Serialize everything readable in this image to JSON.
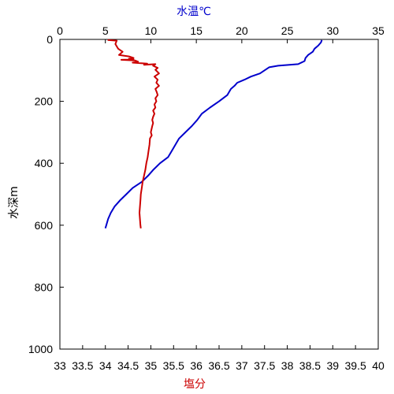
{
  "chart_data": {
    "type": "line",
    "title": "",
    "y_axis": {
      "label": "水深m",
      "range": [
        0,
        1000
      ],
      "ticks": [
        0,
        200,
        400,
        600,
        800,
        1000
      ],
      "inverted": true,
      "label_color": "#000000"
    },
    "x_axis_top": {
      "label": "水温℃",
      "range": [
        0,
        35
      ],
      "ticks": [
        0,
        5,
        10,
        15,
        20,
        25,
        30,
        35
      ],
      "label_color": "#0000cc"
    },
    "x_axis_bottom": {
      "label": "塩分",
      "range": [
        33,
        40
      ],
      "ticks": [
        33,
        33.5,
        34,
        34.5,
        35,
        35.5,
        36,
        36.5,
        37,
        37.5,
        38,
        38.5,
        39,
        39.5,
        40
      ],
      "tick_labels": [
        "33",
        "33.5",
        "34",
        "34.5",
        "35",
        "35.5",
        "36",
        "36.5",
        "37",
        "37.5",
        "38",
        "38.5",
        "39",
        "39.5",
        "40"
      ],
      "label_color": "#cc0000"
    },
    "grid": false,
    "series": [
      {
        "axis": "top",
        "color": "#0000cc",
        "points": [
          [
            28.8,
            2
          ],
          [
            28.7,
            10
          ],
          [
            28.4,
            20
          ],
          [
            28.0,
            30
          ],
          [
            27.8,
            40
          ],
          [
            27.3,
            50
          ],
          [
            27.0,
            60
          ],
          [
            26.9,
            70
          ],
          [
            26.2,
            80
          ],
          [
            24.0,
            85
          ],
          [
            23.0,
            90
          ],
          [
            22.5,
            100
          ],
          [
            22.0,
            110
          ],
          [
            21.0,
            120
          ],
          [
            20.3,
            130
          ],
          [
            19.5,
            140
          ],
          [
            19.2,
            150
          ],
          [
            18.8,
            160
          ],
          [
            18.4,
            180
          ],
          [
            17.5,
            200
          ],
          [
            16.5,
            220
          ],
          [
            15.6,
            240
          ],
          [
            15.1,
            260
          ],
          [
            14.5,
            280
          ],
          [
            13.8,
            300
          ],
          [
            13.1,
            320
          ],
          [
            12.7,
            340
          ],
          [
            12.3,
            360
          ],
          [
            11.9,
            380
          ],
          [
            11.0,
            400
          ],
          [
            10.3,
            420
          ],
          [
            9.7,
            440
          ],
          [
            9.0,
            460
          ],
          [
            8.0,
            480
          ],
          [
            7.3,
            500
          ],
          [
            6.6,
            520
          ],
          [
            6.0,
            540
          ],
          [
            5.6,
            560
          ],
          [
            5.3,
            580
          ],
          [
            5.1,
            600
          ],
          [
            5.0,
            610
          ]
        ]
      },
      {
        "axis": "bottom",
        "color": "#cc0000",
        "points": [
          [
            34.05,
            2
          ],
          [
            34.25,
            4
          ],
          [
            34.22,
            15
          ],
          [
            34.28,
            30
          ],
          [
            34.38,
            40
          ],
          [
            34.3,
            50
          ],
          [
            34.52,
            55
          ],
          [
            34.62,
            60
          ],
          [
            34.52,
            62
          ],
          [
            34.62,
            65
          ],
          [
            34.35,
            66
          ],
          [
            34.65,
            68
          ],
          [
            34.72,
            72
          ],
          [
            34.6,
            75
          ],
          [
            34.92,
            78
          ],
          [
            34.85,
            82
          ],
          [
            35.1,
            80
          ],
          [
            35.05,
            85
          ],
          [
            35.15,
            92
          ],
          [
            35.1,
            98
          ],
          [
            35.18,
            110
          ],
          [
            35.08,
            120
          ],
          [
            35.15,
            130
          ],
          [
            35.12,
            140
          ],
          [
            35.18,
            150
          ],
          [
            35.1,
            160
          ],
          [
            35.13,
            170
          ],
          [
            35.15,
            180
          ],
          [
            35.1,
            190
          ],
          [
            35.12,
            200
          ],
          [
            35.08,
            210
          ],
          [
            35.1,
            220
          ],
          [
            35.05,
            230
          ],
          [
            35.08,
            240
          ],
          [
            35.05,
            250
          ],
          [
            35.03,
            260
          ],
          [
            35.05,
            270
          ],
          [
            35.03,
            280
          ],
          [
            35.0,
            300
          ],
          [
            35.02,
            310
          ],
          [
            34.98,
            320
          ],
          [
            34.97,
            340
          ],
          [
            34.95,
            360
          ],
          [
            34.93,
            380
          ],
          [
            34.9,
            400
          ],
          [
            34.88,
            420
          ],
          [
            34.85,
            440
          ],
          [
            34.82,
            460
          ],
          [
            34.8,
            480
          ],
          [
            34.78,
            500
          ],
          [
            34.77,
            520
          ],
          [
            34.76,
            540
          ],
          [
            34.75,
            560
          ],
          [
            34.76,
            580
          ],
          [
            34.77,
            600
          ],
          [
            34.78,
            610
          ]
        ]
      }
    ]
  }
}
